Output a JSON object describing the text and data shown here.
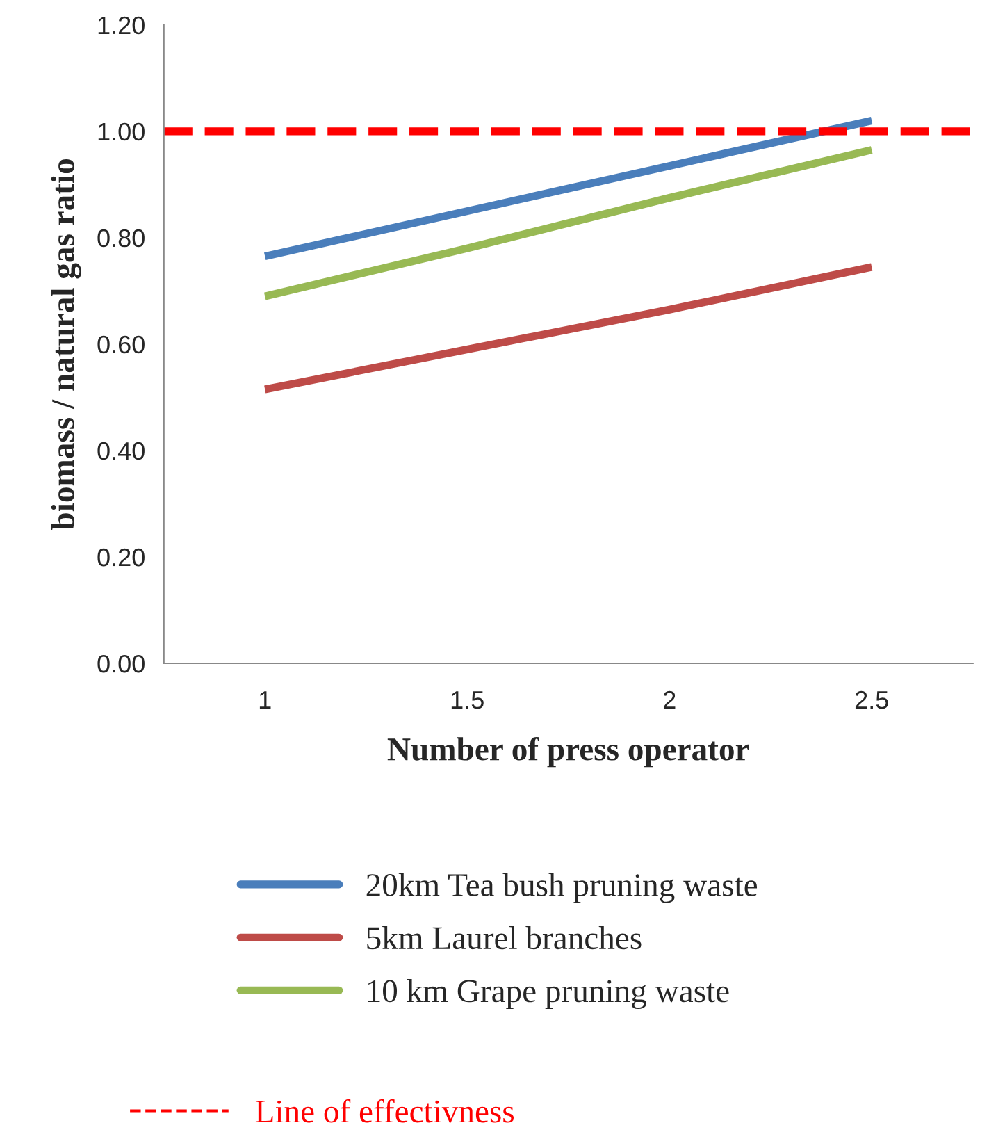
{
  "chart_data": {
    "type": "line",
    "xlabel": "Number of press operator",
    "ylabel": "biomass / natural gas ratio",
    "categories": [
      "1",
      "1.5",
      "2",
      "2.5"
    ],
    "series": [
      {
        "name": "20km Tea bush pruning waste",
        "color": "#4a7ebb",
        "values": [
          0.765,
          0.85,
          0.935,
          1.02
        ]
      },
      {
        "name": "5km Laurel branches",
        "color": "#be4b48",
        "values": [
          0.515,
          0.59,
          0.665,
          0.745
        ]
      },
      {
        "name": "10 km Grape pruning waste",
        "color": "#98b954",
        "values": [
          0.69,
          0.78,
          0.875,
          0.965
        ]
      }
    ],
    "ylim": [
      0,
      1.2
    ],
    "yticks": [
      {
        "value": 0,
        "label": "0.00"
      },
      {
        "value": 0.2,
        "label": "0.20"
      },
      {
        "value": 0.4,
        "label": "0.40"
      },
      {
        "value": 0.6,
        "label": "0.60"
      },
      {
        "value": 0.8,
        "label": "0.80"
      },
      {
        "value": 1.0,
        "label": "1.00"
      },
      {
        "value": 1.2,
        "label": "1.20"
      }
    ],
    "ref_lines": [
      {
        "axis": "y",
        "value": 1.0,
        "label": "Line of effectivness",
        "color": "#ff0000",
        "line_style": "dashed"
      }
    ],
    "legend": "bottom",
    "grid": false,
    "marker": "none",
    "line_style": "solid"
  }
}
